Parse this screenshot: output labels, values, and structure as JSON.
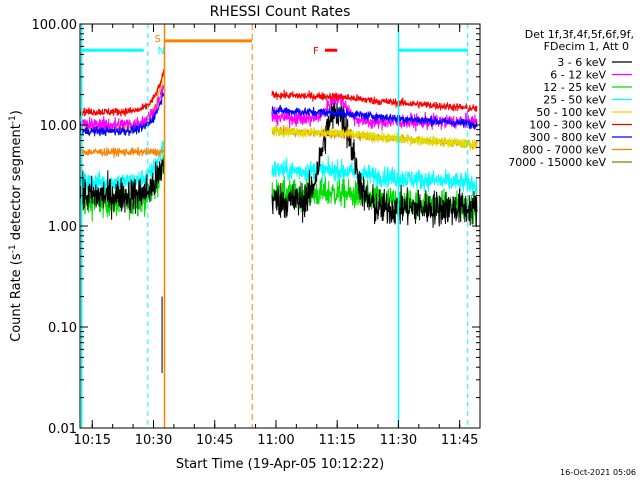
{
  "chart_data": {
    "type": "line",
    "title": "RHESSI Count Rates",
    "xlabel": "Start Time (19-Apr-05 10:12:22)",
    "ylabel_main": "Count Rate (s",
    "ylabel_exp1": "-1",
    "ylabel_mid": " detector segment",
    "ylabel_exp2": "-1",
    "ylabel_end": ")",
    "y_scale": "log",
    "ylim": [
      0.01,
      100
    ],
    "xlim_minutes": [
      10.2,
      11.833
    ],
    "x_ticks": [
      {
        "value": 10.25,
        "label": "10:15"
      },
      {
        "value": 10.5,
        "label": "10:30"
      },
      {
        "value": 10.75,
        "label": "10:45"
      },
      {
        "value": 11.0,
        "label": "11:00"
      },
      {
        "value": 11.25,
        "label": "11:15"
      },
      {
        "value": 11.5,
        "label": "11:30"
      },
      {
        "value": 11.75,
        "label": "11:45"
      }
    ],
    "y_ticks": [
      {
        "value": 0.01,
        "label": "0.01"
      },
      {
        "value": 0.1,
        "label": "0.10"
      },
      {
        "value": 1,
        "label": "1.00"
      },
      {
        "value": 10,
        "label": "10.00"
      },
      {
        "value": 100,
        "label": "100.00"
      }
    ],
    "legend_title_1": "Det 1f,3f,4f,5f,6f,9f,",
    "legend_title_2": "FDecim 1, Att 0",
    "series": [
      {
        "name": "3 - 6 keV",
        "color": "#000000",
        "level_pre": 2.0,
        "level_post": 1.8,
        "peak": 13.5,
        "noise": 0.35
      },
      {
        "name": "6 - 12 keV",
        "color": "#ff00ff",
        "level_pre": 10.0,
        "level_post": 12.0,
        "peak": 24.0,
        "noise": 0.15
      },
      {
        "name": "12 - 25 keV",
        "color": "#00dd00",
        "level_pre": 1.7,
        "level_post": 2.1,
        "peak": 2.6,
        "noise": 0.28
      },
      {
        "name": "25 - 50 keV",
        "color": "#00ffff",
        "level_pre": 2.7,
        "level_post": 3.6,
        "peak": 4.2,
        "noise": 0.2
      },
      {
        "name": "50 - 100 keV",
        "color": "#dddd00",
        "level_pre": 9.0,
        "level_post": 8.8,
        "peak": 9.5,
        "noise": 0.1
      },
      {
        "name": "100 - 300 keV",
        "color": "#ff0000",
        "level_pre": 13.5,
        "level_post": 20.0,
        "peak": 22.0,
        "noise": 0.08
      },
      {
        "name": "300 - 800 keV",
        "color": "#0000ff",
        "level_pre": 8.7,
        "level_post": 14.0,
        "peak": 15.0,
        "noise": 0.09
      },
      {
        "name": "800 - 7000 keV",
        "color": "#ff8000",
        "level_pre": 5.4,
        "level_post": 8.8,
        "peak": 9.0,
        "noise": 0.08
      },
      {
        "name": "7000 - 15000 keV",
        "color": "#808000",
        "level_pre": null,
        "level_post": null,
        "peak": null,
        "noise": 0
      }
    ],
    "gaps": [
      {
        "from": 10.543,
        "to": 10.983
      }
    ],
    "markers": {
      "cyan_solid_lines": [
        10.207,
        11.5
      ],
      "cyan_dashed_lines": [
        10.477,
        11.783
      ],
      "orange_solid_line": 10.545,
      "orange_dashed_line": 10.903,
      "cyan_top_bars": [
        [
          10.207,
          10.46
        ],
        [
          11.5,
          11.783
        ]
      ],
      "cyan_top_level": 55,
      "orange_top_bar": [
        10.545,
        10.903
      ],
      "orange_top_level": 68,
      "flare_bar": [
        11.2,
        11.25
      ],
      "flare_level": 55,
      "flare_label": "F",
      "s_label": "S",
      "n_label": "N",
      "s_label_color": "#ff8000",
      "n_label_color": "#00ffff"
    },
    "flare_peak_time": 11.25,
    "timestamp": "16-Oct-2021 05:06"
  }
}
